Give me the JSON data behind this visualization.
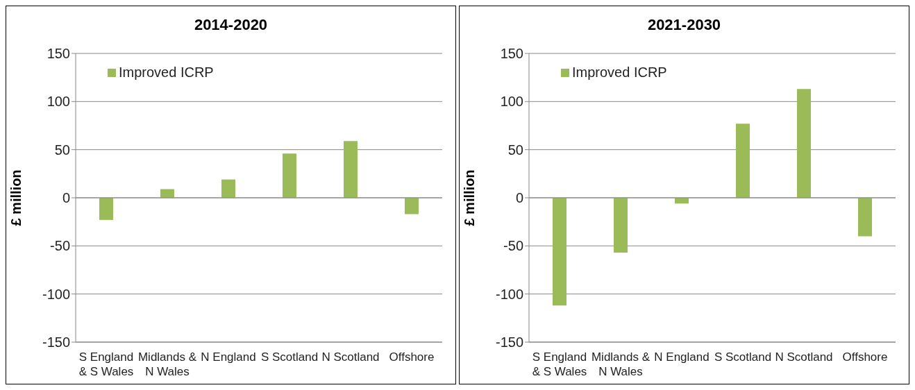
{
  "chart_data": [
    {
      "type": "bar",
      "title": "2014-2020",
      "ylabel": "£ million",
      "categories": [
        "S England & S Wales",
        "Midlands & N Wales",
        "N England",
        "S Scotland",
        "N Scotland",
        "Offshore"
      ],
      "series": [
        {
          "name": "Improved ICRP",
          "color": "#9bbb59",
          "values": [
            -23,
            9,
            19,
            46,
            59,
            -17
          ]
        }
      ],
      "ylim": [
        -150,
        150
      ],
      "yticks": [
        -150,
        -100,
        -50,
        0,
        50,
        100,
        150
      ],
      "grid": "y",
      "legend": "top left"
    },
    {
      "type": "bar",
      "title": "2021-2030",
      "ylabel": "£ million",
      "categories": [
        "S England & S Wales",
        "Midlands & N Wales",
        "N England",
        "S Scotland",
        "N Scotland",
        "Offshore"
      ],
      "series": [
        {
          "name": "Improved ICRP",
          "color": "#9bbb59",
          "values": [
            -112,
            -57,
            -6,
            77,
            113,
            -40
          ]
        }
      ],
      "ylim": [
        -150,
        150
      ],
      "yticks": [
        -150,
        -100,
        -50,
        0,
        50,
        100,
        150
      ],
      "grid": "y",
      "legend": "top left"
    }
  ]
}
